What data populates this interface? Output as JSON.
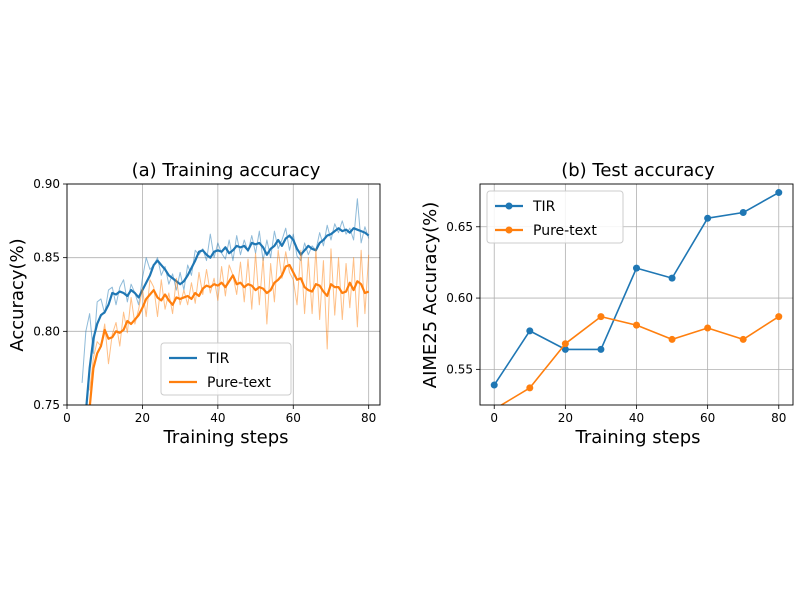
{
  "chart_data": [
    {
      "type": "line",
      "title": "(a) Training accuracy",
      "xlabel": "Training steps",
      "ylabel": "Accuracy(%)",
      "xlim": [
        0,
        83
      ],
      "ylim": [
        0.75,
        0.9
      ],
      "xticks": [
        0,
        20,
        40,
        60,
        80
      ],
      "xtick_labels": [
        "0",
        "20",
        "40",
        "60",
        "80"
      ],
      "yticks": [
        0.75,
        0.8,
        0.85,
        0.9
      ],
      "ytick_labels": [
        "0.75",
        "0.80",
        "0.85",
        "0.90"
      ],
      "grid": true,
      "legend_position": "bottom-center",
      "series": [
        {
          "name": "TIR",
          "color": "#1f77b4",
          "smoothed": {
            "x": [
              5,
              6,
              7,
              8,
              9,
              10,
              11,
              12,
              13,
              14,
              15,
              16,
              17,
              18,
              19,
              20,
              21,
              22,
              23,
              24,
              25,
              26,
              27,
              28,
              29,
              30,
              31,
              32,
              33,
              34,
              35,
              36,
              37,
              38,
              39,
              40,
              41,
              42,
              43,
              44,
              45,
              46,
              47,
              48,
              49,
              50,
              51,
              52,
              53,
              54,
              55,
              56,
              57,
              58,
              59,
              60,
              61,
              62,
              63,
              64,
              65,
              66,
              67,
              68,
              69,
              70,
              71,
              72,
              73,
              74,
              75,
              76,
              77,
              78,
              79,
              80
            ],
            "y": [
              0.745,
              0.775,
              0.795,
              0.805,
              0.811,
              0.813,
              0.818,
              0.826,
              0.825,
              0.827,
              0.826,
              0.824,
              0.828,
              0.826,
              0.823,
              0.828,
              0.833,
              0.838,
              0.845,
              0.848,
              0.845,
              0.842,
              0.838,
              0.836,
              0.834,
              0.832,
              0.834,
              0.838,
              0.843,
              0.848,
              0.854,
              0.855,
              0.852,
              0.85,
              0.854,
              0.855,
              0.854,
              0.857,
              0.853,
              0.855,
              0.858,
              0.857,
              0.858,
              0.855,
              0.86,
              0.859,
              0.86,
              0.857,
              0.852,
              0.856,
              0.858,
              0.862,
              0.858,
              0.863,
              0.865,
              0.862,
              0.856,
              0.852,
              0.855,
              0.858,
              0.856,
              0.855,
              0.86,
              0.862,
              0.865,
              0.866,
              0.868,
              0.87,
              0.868,
              0.869,
              0.867,
              0.87,
              0.869,
              0.868,
              0.867,
              0.865
            ]
          },
          "raw": {
            "x": [
              4,
              5,
              6,
              7,
              8,
              9,
              10,
              11,
              12,
              13,
              14,
              15,
              16,
              17,
              18,
              19,
              20,
              21,
              22,
              23,
              24,
              25,
              26,
              27,
              28,
              29,
              30,
              31,
              32,
              33,
              34,
              35,
              36,
              37,
              38,
              39,
              40,
              41,
              42,
              43,
              44,
              45,
              46,
              47,
              48,
              49,
              50,
              51,
              52,
              53,
              54,
              55,
              56,
              57,
              58,
              59,
              60,
              61,
              62,
              63,
              64,
              65,
              66,
              67,
              68,
              69,
              70,
              71,
              72,
              73,
              74,
              75,
              76,
              77,
              78,
              79,
              80
            ],
            "y": [
              0.765,
              0.8,
              0.812,
              0.785,
              0.82,
              0.822,
              0.812,
              0.828,
              0.83,
              0.818,
              0.83,
              0.835,
              0.82,
              0.832,
              0.826,
              0.818,
              0.836,
              0.85,
              0.842,
              0.845,
              0.85,
              0.838,
              0.844,
              0.832,
              0.839,
              0.828,
              0.84,
              0.828,
              0.845,
              0.838,
              0.855,
              0.852,
              0.856,
              0.848,
              0.866,
              0.85,
              0.86,
              0.853,
              0.849,
              0.862,
              0.848,
              0.865,
              0.852,
              0.862,
              0.854,
              0.865,
              0.853,
              0.868,
              0.848,
              0.862,
              0.85,
              0.868,
              0.856,
              0.862,
              0.87,
              0.855,
              0.866,
              0.851,
              0.848,
              0.86,
              0.852,
              0.858,
              0.855,
              0.867,
              0.858,
              0.872,
              0.862,
              0.873,
              0.867,
              0.875,
              0.866,
              0.87,
              0.862,
              0.89,
              0.86,
              0.871,
              0.863
            ]
          }
        },
        {
          "name": "Pure-text",
          "color": "#ff7f0e",
          "smoothed": {
            "x": [
              6,
              7,
              8,
              9,
              10,
              11,
              12,
              13,
              14,
              15,
              16,
              17,
              18,
              19,
              20,
              21,
              22,
              23,
              24,
              25,
              26,
              27,
              28,
              29,
              30,
              31,
              32,
              33,
              34,
              35,
              36,
              37,
              38,
              39,
              40,
              41,
              42,
              43,
              44,
              45,
              46,
              47,
              48,
              49,
              50,
              51,
              52,
              53,
              54,
              55,
              56,
              57,
              58,
              59,
              60,
              61,
              62,
              63,
              64,
              65,
              66,
              67,
              68,
              69,
              70,
              71,
              72,
              73,
              74,
              75,
              76,
              77,
              78,
              79,
              80
            ],
            "y": [
              0.748,
              0.775,
              0.785,
              0.79,
              0.801,
              0.795,
              0.796,
              0.8,
              0.799,
              0.801,
              0.807,
              0.805,
              0.808,
              0.811,
              0.816,
              0.822,
              0.825,
              0.828,
              0.823,
              0.821,
              0.825,
              0.821,
              0.818,
              0.823,
              0.822,
              0.823,
              0.824,
              0.822,
              0.826,
              0.824,
              0.829,
              0.831,
              0.83,
              0.832,
              0.831,
              0.833,
              0.83,
              0.834,
              0.838,
              0.832,
              0.833,
              0.83,
              0.832,
              0.831,
              0.828,
              0.83,
              0.829,
              0.826,
              0.828,
              0.833,
              0.835,
              0.838,
              0.844,
              0.845,
              0.84,
              0.835,
              0.836,
              0.83,
              0.828,
              0.827,
              0.832,
              0.831,
              0.827,
              0.824,
              0.832,
              0.83,
              0.83,
              0.826,
              0.827,
              0.833,
              0.828,
              0.834,
              0.832,
              0.826,
              0.827
            ]
          },
          "raw": {
            "x": [
              6,
              7,
              8,
              9,
              10,
              11,
              12,
              13,
              14,
              15,
              16,
              17,
              18,
              19,
              20,
              21,
              22,
              23,
              24,
              25,
              26,
              27,
              28,
              29,
              30,
              31,
              32,
              33,
              34,
              35,
              36,
              37,
              38,
              39,
              40,
              41,
              42,
              43,
              44,
              45,
              46,
              47,
              48,
              49,
              50,
              51,
              52,
              53,
              54,
              55,
              56,
              57,
              58,
              59,
              60,
              61,
              62,
              63,
              64,
              65,
              66,
              67,
              68,
              69,
              70,
              71,
              72,
              73,
              74,
              75,
              76,
              77,
              78,
              79,
              80
            ],
            "y": [
              0.76,
              0.782,
              0.793,
              0.79,
              0.805,
              0.778,
              0.798,
              0.806,
              0.79,
              0.813,
              0.799,
              0.823,
              0.805,
              0.815,
              0.829,
              0.81,
              0.835,
              0.83,
              0.81,
              0.835,
              0.815,
              0.826,
              0.812,
              0.836,
              0.818,
              0.828,
              0.818,
              0.833,
              0.819,
              0.84,
              0.825,
              0.842,
              0.826,
              0.836,
              0.821,
              0.844,
              0.824,
              0.845,
              0.838,
              0.825,
              0.847,
              0.82,
              0.849,
              0.815,
              0.853,
              0.818,
              0.85,
              0.805,
              0.846,
              0.82,
              0.855,
              0.836,
              0.854,
              0.84,
              0.835,
              0.818,
              0.855,
              0.812,
              0.85,
              0.812,
              0.856,
              0.808,
              0.848,
              0.788,
              0.856,
              0.811,
              0.85,
              0.808,
              0.846,
              0.816,
              0.85,
              0.803,
              0.855,
              0.812,
              0.852
            ]
          }
        }
      ]
    },
    {
      "type": "line",
      "title": "(b) Test accuracy",
      "xlabel": "Training steps",
      "ylabel": "AIME25 Accuracy(%)",
      "xlim": [
        -4,
        84
      ],
      "ylim": [
        0.525,
        0.68
      ],
      "xticks": [
        0,
        20,
        40,
        60,
        80
      ],
      "xtick_labels": [
        "0",
        "20",
        "40",
        "60",
        "80"
      ],
      "yticks": [
        0.55,
        0.6,
        0.65
      ],
      "ytick_labels": [
        "0.55",
        "0.60",
        "0.65"
      ],
      "grid": true,
      "legend_position": "top-left",
      "series": [
        {
          "name": "TIR",
          "color": "#1f77b4",
          "x": [
            0,
            10,
            20,
            30,
            40,
            50,
            60,
            70,
            80
          ],
          "y": [
            0.539,
            0.577,
            0.564,
            0.564,
            0.621,
            0.614,
            0.656,
            0.66,
            0.674
          ]
        },
        {
          "name": "Pure-text",
          "color": "#ff7f0e",
          "x": [
            0,
            10,
            20,
            30,
            40,
            50,
            60,
            70,
            80
          ],
          "y": [
            0.522,
            0.537,
            0.568,
            0.587,
            0.581,
            0.571,
            0.579,
            0.571,
            0.587
          ]
        }
      ]
    }
  ]
}
